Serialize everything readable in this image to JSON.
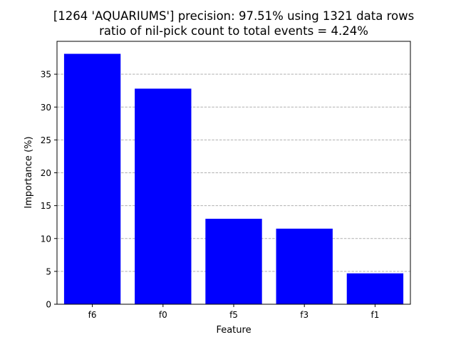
{
  "chart_data": {
    "type": "bar",
    "title": "[1264 'AQUARIUMS'] precision: 97.51% using 1321 data rows",
    "subtitle": "ratio of nil-pick count to total events = 4.24%",
    "xlabel": "Feature",
    "ylabel": "Importance (%)",
    "categories": [
      "f6",
      "f0",
      "f5",
      "f3",
      "f1"
    ],
    "values": [
      38.1,
      32.8,
      13.0,
      11.5,
      4.7
    ],
    "ylim": [
      0,
      40
    ],
    "yticks": [
      0,
      5,
      10,
      15,
      20,
      25,
      30,
      35
    ],
    "ytick_labels": [
      "0",
      "5",
      "10",
      "15",
      "20",
      "25",
      "30",
      "35"
    ],
    "grid": "y-axis, dashed",
    "bar_color": "#0000ff",
    "grid_color": "#b0b0b0"
  }
}
